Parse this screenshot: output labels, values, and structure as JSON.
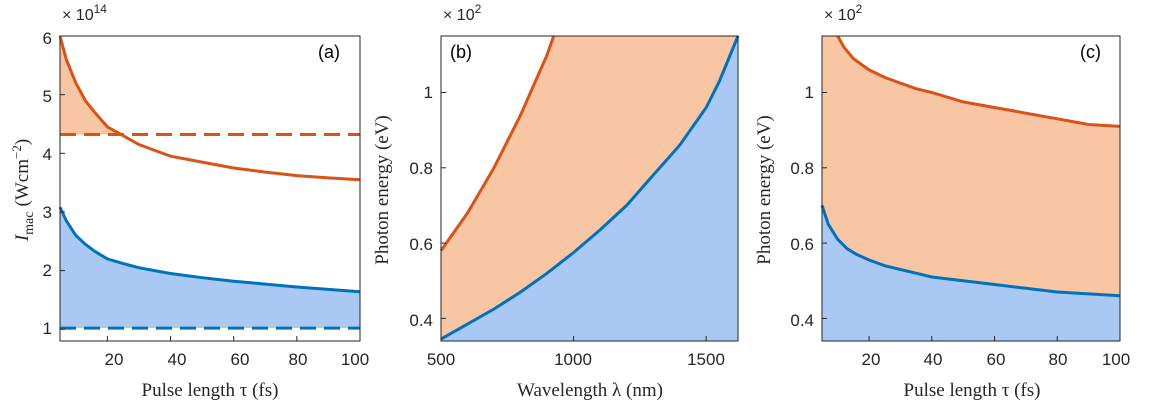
{
  "colors": {
    "orange_line": "#D95319",
    "orange_fill": "#F9C6A4",
    "blue_line": "#0072BD",
    "blue_fill": "#A9C8F4",
    "axis": "#262626"
  },
  "chart_data": [
    {
      "type": "area",
      "panel_label": "(a)",
      "xlabel": "Pulse length τ (fs)",
      "ylabel": "I_mac (Wcm^-2)",
      "y_multiplier": "×10^14",
      "xlim": [
        5,
        100
      ],
      "ylim": [
        0.8,
        6.0
      ],
      "xticks": [
        20,
        40,
        60,
        80,
        100
      ],
      "yticks": [
        1,
        2,
        3,
        4,
        5,
        6
      ],
      "grid": false,
      "series": [
        {
          "color": "orange",
          "x": [
            5,
            7,
            10,
            13,
            16,
            20,
            25,
            30,
            35,
            40,
            50,
            60,
            70,
            80,
            90,
            100
          ],
          "values": [
            6.0,
            5.6,
            5.2,
            4.9,
            4.7,
            4.45,
            4.3,
            4.15,
            4.05,
            3.95,
            3.85,
            3.75,
            3.68,
            3.62,
            3.58,
            3.55
          ],
          "fill": "above dashed orange line"
        },
        {
          "color": "orange-dashed",
          "x": [
            5,
            100
          ],
          "values": [
            4.32,
            4.32
          ]
        },
        {
          "color": "blue",
          "x": [
            5,
            7,
            10,
            13,
            16,
            20,
            25,
            30,
            35,
            40,
            50,
            60,
            70,
            80,
            90,
            100
          ],
          "values": [
            3.08,
            2.85,
            2.6,
            2.45,
            2.33,
            2.2,
            2.12,
            2.05,
            2.0,
            1.95,
            1.88,
            1.82,
            1.77,
            1.72,
            1.68,
            1.64
          ],
          "fill": "down to dashed blue line"
        },
        {
          "color": "blue-dashed",
          "x": [
            5,
            100
          ],
          "values": [
            1.02,
            1.02
          ]
        }
      ]
    },
    {
      "type": "area",
      "panel_label": "(b)",
      "xlabel": "Wavelength λ (nm)",
      "ylabel": "Photon energy (eV)",
      "y_multiplier": "×10^2",
      "xlim": [
        500,
        1620
      ],
      "ylim": [
        0.34,
        1.15
      ],
      "xticks": [
        500,
        1000,
        1500
      ],
      "yticks": [
        0.4,
        0.6,
        0.8,
        1
      ],
      "grid": false,
      "series": [
        {
          "color": "orange",
          "x": [
            500,
            550,
            600,
            650,
            700,
            750,
            800,
            850,
            900,
            925
          ],
          "values": [
            0.58,
            0.63,
            0.68,
            0.74,
            0.8,
            0.87,
            0.94,
            1.02,
            1.1,
            1.15
          ]
        },
        {
          "color": "blue",
          "x": [
            500,
            600,
            700,
            800,
            900,
            1000,
            1100,
            1200,
            1300,
            1400,
            1500,
            1550,
            1620
          ],
          "values": [
            0.345,
            0.385,
            0.425,
            0.47,
            0.52,
            0.575,
            0.635,
            0.7,
            0.78,
            0.86,
            0.96,
            1.03,
            1.15
          ]
        }
      ]
    },
    {
      "type": "area",
      "panel_label": "(c)",
      "xlabel": "Pulse length τ (fs)",
      "ylabel": "Photon energy (eV)",
      "y_multiplier": "×10^2",
      "xlim": [
        5,
        100
      ],
      "ylim": [
        0.34,
        1.15
      ],
      "xticks": [
        20,
        40,
        60,
        80,
        100
      ],
      "yticks": [
        0.4,
        0.6,
        0.8,
        1
      ],
      "grid": false,
      "series": [
        {
          "color": "orange",
          "x": [
            10,
            12,
            15,
            20,
            25,
            30,
            35,
            40,
            50,
            60,
            70,
            80,
            90,
            100
          ],
          "values": [
            1.15,
            1.12,
            1.09,
            1.06,
            1.04,
            1.025,
            1.01,
            1.0,
            0.975,
            0.96,
            0.945,
            0.93,
            0.915,
            0.91
          ]
        },
        {
          "color": "blue",
          "x": [
            5,
            7,
            10,
            13,
            16,
            20,
            25,
            30,
            35,
            40,
            50,
            60,
            70,
            80,
            90,
            100
          ],
          "values": [
            0.7,
            0.65,
            0.61,
            0.585,
            0.57,
            0.555,
            0.54,
            0.53,
            0.52,
            0.51,
            0.5,
            0.49,
            0.48,
            0.47,
            0.465,
            0.46
          ]
        }
      ]
    }
  ],
  "panels": {
    "a": {
      "label": "(a)",
      "xlabel": "Pulse length τ (fs)",
      "ylabel_main": "I",
      "ylabel_sub": "mac",
      "ylabel_unit": "(Wcm",
      "ylabel_exp": "−2",
      "ylabel_close": ")",
      "mult": "× 10",
      "mult_exp": "14",
      "xticks": [
        "20",
        "40",
        "60",
        "80",
        "100"
      ],
      "yticks": [
        "1",
        "2",
        "3",
        "4",
        "5",
        "6"
      ]
    },
    "b": {
      "label": "(b)",
      "xlabel": "Wavelength λ (nm)",
      "ylabel": "Photon energy (eV)",
      "mult": "× 10",
      "mult_exp": "2",
      "xticks": [
        "500",
        "1000",
        "1500"
      ],
      "yticks": [
        "0.4",
        "0.6",
        "0.8",
        "1"
      ]
    },
    "c": {
      "label": "(c)",
      "xlabel": "Pulse length τ (fs)",
      "ylabel": "Photon energy (eV)",
      "mult": "× 10",
      "mult_exp": "2",
      "xticks": [
        "20",
        "40",
        "60",
        "80",
        "100"
      ],
      "yticks": [
        "0.4",
        "0.6",
        "0.8",
        "1"
      ]
    }
  }
}
